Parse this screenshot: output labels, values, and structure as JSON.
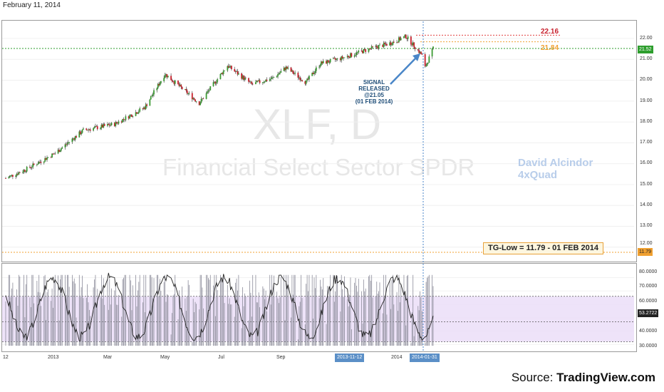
{
  "header": {
    "date": "February 11, 2014"
  },
  "watermark": {
    "ticker": "XLF, D",
    "name": "Financial Select Sector SPDR"
  },
  "author": {
    "line1": "David Alcindor",
    "line2": "4xQuad"
  },
  "annotations": {
    "resistance_label": "22.16",
    "support_label": "21.84",
    "tg_low": "TG-Low = 11.79 - 01 FEB 2014",
    "signal_lines": [
      "SIGNAL",
      "RELEASED",
      "@21.05",
      "(01 FEB 2014)"
    ]
  },
  "colors": {
    "up": "#3c9b33",
    "down": "#c8202c",
    "resistance": "#e04040",
    "support": "#f0a030",
    "last_line": "#2e9e2e",
    "tg_line": "#f0a030",
    "signal": "#4a86c8",
    "osc_band": "#eadcf7"
  },
  "price_axis": {
    "ticks": [
      "22.00",
      "21.00",
      "20.00",
      "19.00",
      "18.00",
      "17.00",
      "16.00",
      "15.00",
      "14.00",
      "13.00",
      "12.00"
    ],
    "last_price": "21.52",
    "tg_price": "11.79"
  },
  "osc_axis": {
    "ticks": [
      "80.0000",
      "70.0000",
      "60.0000",
      "50.0000",
      "40.0000",
      "30.0000"
    ],
    "current": "53.2722"
  },
  "time_axis": {
    "ticks": [
      "12",
      "2013",
      "Mar",
      "May",
      "Jul",
      "Sep",
      "2014"
    ],
    "marker_left": "2013-11-12",
    "marker_right": "2014-01-31"
  },
  "source": {
    "prefix": "Source: ",
    "brand": "TradingView.com"
  },
  "chart_data": {
    "type": "candlestick",
    "title": "XLF, D",
    "subtitle": "Financial Select Sector SPDR",
    "close_path": {
      "dates": [
        "2012-12-14",
        "2013-01-02",
        "2013-02-01",
        "2013-03-01",
        "2013-04-01",
        "2013-05-01",
        "2013-05-21",
        "2013-06-24",
        "2013-07-22",
        "2013-08-15",
        "2013-09-05",
        "2013-09-18",
        "2013-10-08",
        "2013-10-22",
        "2013-11-12",
        "2013-12-10",
        "2014-01-01",
        "2014-01-15",
        "2014-01-31",
        "2014-02-03",
        "2014-02-11"
      ],
      "close": [
        15.3,
        15.7,
        16.5,
        17.6,
        17.9,
        18.7,
        20.3,
        18.9,
        20.7,
        19.8,
        20.1,
        20.6,
        19.9,
        20.8,
        21.05,
        21.5,
        21.8,
        22.1,
        21.2,
        20.6,
        21.52
      ]
    },
    "levels": {
      "resistance": 22.16,
      "support": 21.84,
      "last": 21.52,
      "tg_low": 11.79,
      "signal_price": 21.05
    },
    "ylim": [
      11.5,
      22.5
    ],
    "oscillator": {
      "last": 53.2722,
      "upper_band": 66,
      "lower_band": 32,
      "mid": 47,
      "ylim": [
        28,
        84
      ]
    }
  }
}
